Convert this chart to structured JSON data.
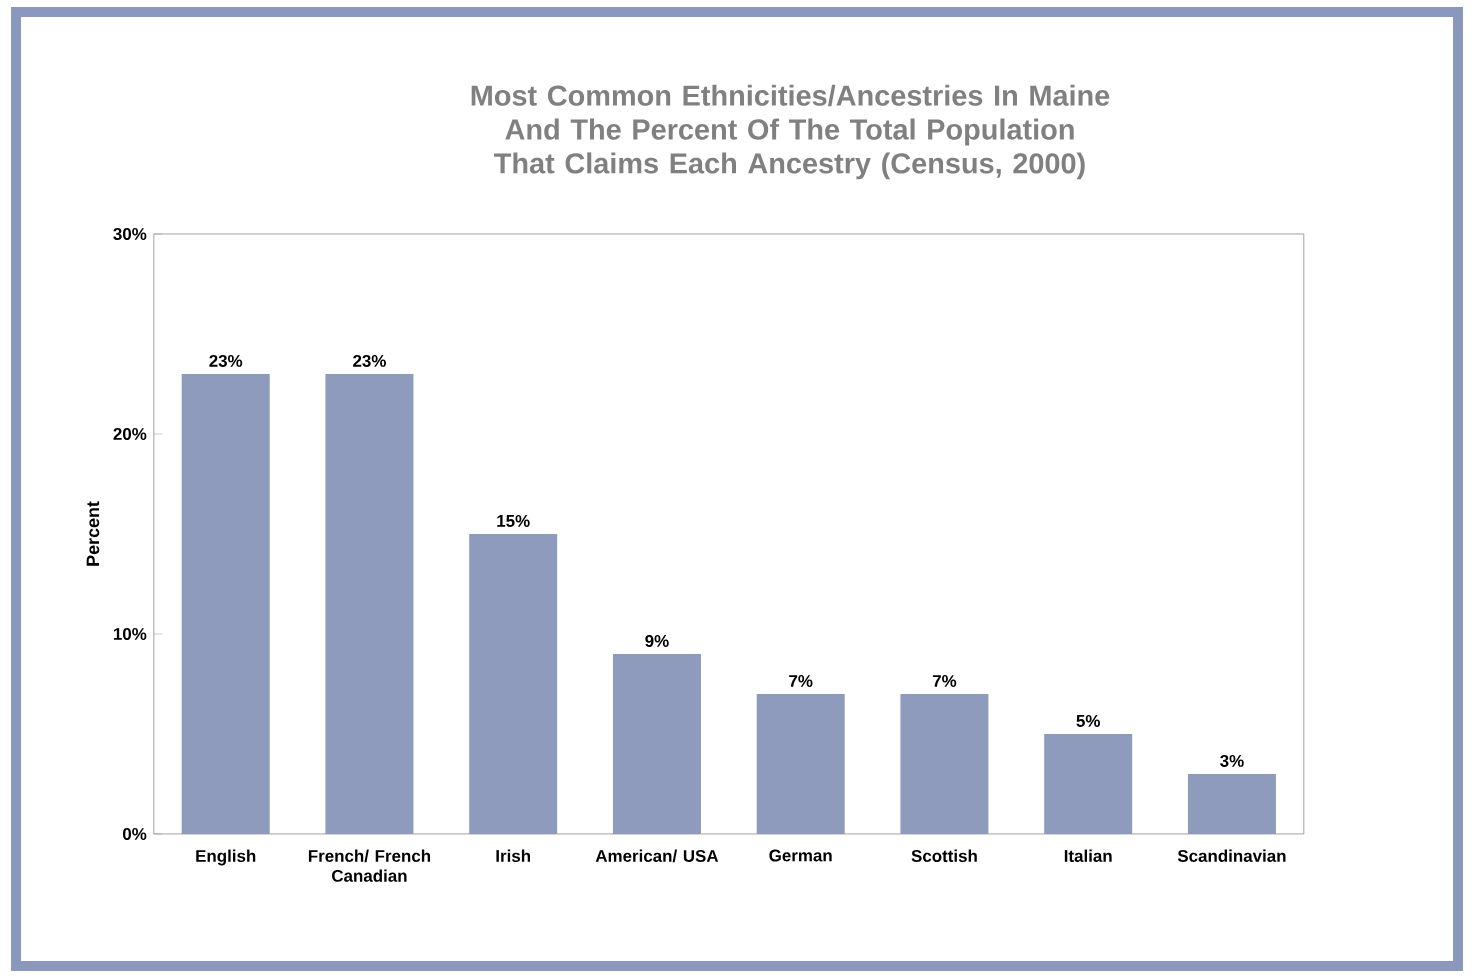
{
  "chart_data": {
    "type": "bar",
    "title": "Most Common Ethnicities/Ancestries In Maine And The Percent Of The Total Population That Claims Each Ancestry (Census, 2000)",
    "ylabel": "Percent",
    "categories": [
      "English",
      "French/ French Canadian",
      "Irish",
      "American/ USA",
      "German",
      "Scottish",
      "Italian",
      "Scandinavian"
    ],
    "values": [
      23,
      23,
      15,
      9,
      7,
      7,
      5,
      3
    ],
    "value_labels": [
      "23%",
      "23%",
      "15%",
      "9%",
      "7%",
      "7%",
      "5%",
      "3%"
    ],
    "color": "#8e9bbd",
    "ylim": [
      0,
      30
    ],
    "yticks": [
      {
        "value": 0,
        "label": "0%"
      },
      {
        "value": 10,
        "label": "10%"
      },
      {
        "value": 20,
        "label": "20%"
      },
      {
        "value": 30,
        "label": "30%"
      }
    ]
  }
}
